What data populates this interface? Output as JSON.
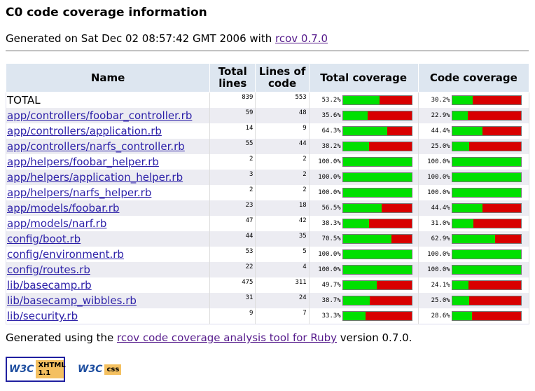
{
  "header": {
    "title": "C0 code coverage information",
    "generated_prefix": "Generated on Sat Dec 02 08:57:42 GMT 2006 with",
    "generated_link": "rcov 0.7.0"
  },
  "table": {
    "columns": [
      "Name",
      "Total lines",
      "Lines of code",
      "Total coverage",
      "Code coverage"
    ],
    "rows": [
      {
        "name": "TOTAL",
        "total_lines": 839,
        "code_lines": 553,
        "total_coverage": 53.2,
        "total_coverage_label": "53.2%",
        "code_coverage": 30.2,
        "code_coverage_label": "30.2%"
      },
      {
        "name": "app/controllers/foobar_controller.rb",
        "total_lines": 59,
        "code_lines": 48,
        "total_coverage": 35.6,
        "total_coverage_label": "35.6%",
        "code_coverage": 22.9,
        "code_coverage_label": "22.9%"
      },
      {
        "name": "app/controllers/application.rb",
        "total_lines": 14,
        "code_lines": 9,
        "total_coverage": 64.3,
        "total_coverage_label": "64.3%",
        "code_coverage": 44.4,
        "code_coverage_label": "44.4%"
      },
      {
        "name": "app/controllers/narfs_controller.rb",
        "total_lines": 55,
        "code_lines": 44,
        "total_coverage": 38.2,
        "total_coverage_label": "38.2%",
        "code_coverage": 25.0,
        "code_coverage_label": "25.0%"
      },
      {
        "name": "app/helpers/foobar_helper.rb",
        "total_lines": 2,
        "code_lines": 2,
        "total_coverage": 100.0,
        "total_coverage_label": "100.0%",
        "code_coverage": 100.0,
        "code_coverage_label": "100.0%"
      },
      {
        "name": "app/helpers/application_helper.rb",
        "total_lines": 3,
        "code_lines": 2,
        "total_coverage": 100.0,
        "total_coverage_label": "100.0%",
        "code_coverage": 100.0,
        "code_coverage_label": "100.0%"
      },
      {
        "name": "app/helpers/narfs_helper.rb",
        "total_lines": 2,
        "code_lines": 2,
        "total_coverage": 100.0,
        "total_coverage_label": "100.0%",
        "code_coverage": 100.0,
        "code_coverage_label": "100.0%"
      },
      {
        "name": "app/models/foobar.rb",
        "total_lines": 23,
        "code_lines": 18,
        "total_coverage": 56.5,
        "total_coverage_label": "56.5%",
        "code_coverage": 44.4,
        "code_coverage_label": "44.4%"
      },
      {
        "name": "app/models/narf.rb",
        "total_lines": 47,
        "code_lines": 42,
        "total_coverage": 38.3,
        "total_coverage_label": "38.3%",
        "code_coverage": 31.0,
        "code_coverage_label": "31.0%"
      },
      {
        "name": "config/boot.rb",
        "total_lines": 44,
        "code_lines": 35,
        "total_coverage": 70.5,
        "total_coverage_label": "70.5%",
        "code_coverage": 62.9,
        "code_coverage_label": "62.9%"
      },
      {
        "name": "config/environment.rb",
        "total_lines": 53,
        "code_lines": 5,
        "total_coverage": 100.0,
        "total_coverage_label": "100.0%",
        "code_coverage": 100.0,
        "code_coverage_label": "100.0%"
      },
      {
        "name": "config/routes.rb",
        "total_lines": 22,
        "code_lines": 4,
        "total_coverage": 100.0,
        "total_coverage_label": "100.0%",
        "code_coverage": 100.0,
        "code_coverage_label": "100.0%"
      },
      {
        "name": "lib/basecamp.rb",
        "total_lines": 475,
        "code_lines": 311,
        "total_coverage": 49.7,
        "total_coverage_label": "49.7%",
        "code_coverage": 24.1,
        "code_coverage_label": "24.1%"
      },
      {
        "name": "lib/basecamp_wibbles.rb",
        "total_lines": 31,
        "code_lines": 24,
        "total_coverage": 38.7,
        "total_coverage_label": "38.7%",
        "code_coverage": 25.0,
        "code_coverage_label": "25.0%"
      },
      {
        "name": "lib/security.rb",
        "total_lines": 9,
        "code_lines": 7,
        "total_coverage": 33.3,
        "total_coverage_label": "33.3%",
        "code_coverage": 28.6,
        "code_coverage_label": "28.6%"
      }
    ]
  },
  "footer": {
    "prefix": "Generated using the",
    "link": "rcov code coverage analysis tool for Ruby",
    "suffix": "version 0.7.0.",
    "badges": [
      {
        "logo": "W3C",
        "label": "XHTML 1.1"
      },
      {
        "logo": "W3C",
        "label": "css"
      }
    ]
  }
}
